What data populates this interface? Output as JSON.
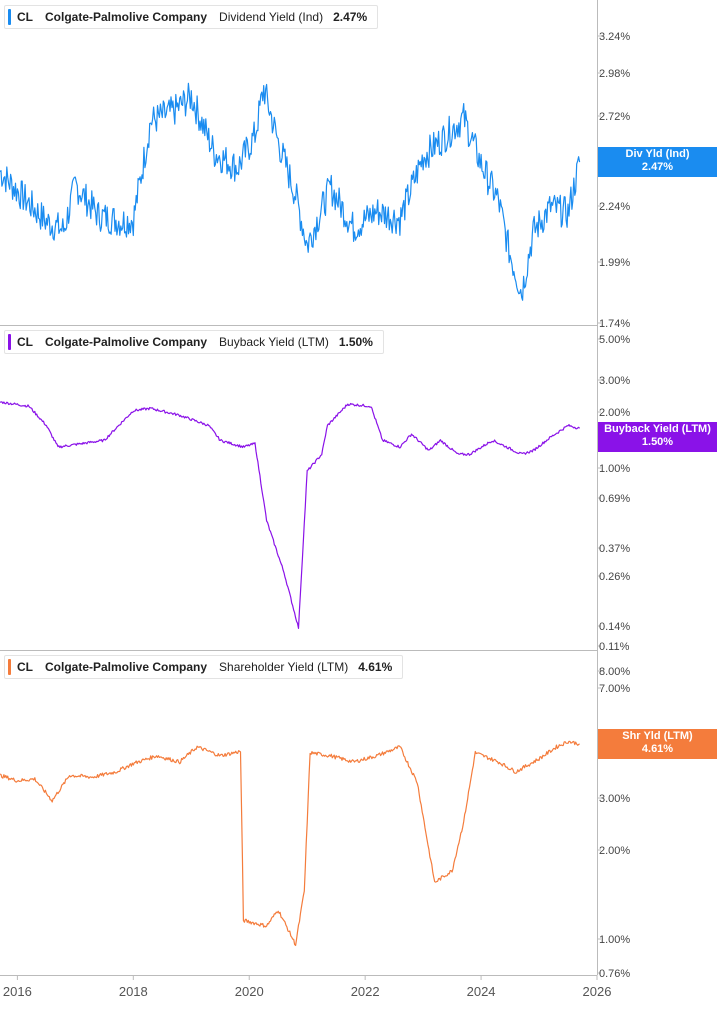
{
  "chart_data": [
    {
      "type": "line",
      "ticker": "CL",
      "company": "Colgate-Palmolive Company",
      "metric": "Dividend Yield (Ind)",
      "current_value": "2.47%",
      "tag_label": "Div Yld (Ind)",
      "tag_value": "2.47%",
      "color": "#1a8cf0",
      "scale": "log",
      "yticks": [
        "3.24%",
        "2.98%",
        "2.72%",
        "2.24%",
        "1.99%",
        "1.74%"
      ],
      "ytick_values": [
        3.24,
        2.98,
        2.72,
        2.24,
        1.99,
        1.74
      ],
      "ylim": [
        1.74,
        3.5
      ],
      "x": [
        2015.7,
        2016.0,
        2016.5,
        2016.8,
        2017.0,
        2017.4,
        2017.8,
        2018.0,
        2018.3,
        2018.7,
        2019.0,
        2019.4,
        2019.8,
        2020.1,
        2020.25,
        2020.5,
        2020.8,
        2021.0,
        2021.4,
        2021.8,
        2022.2,
        2022.6,
        2023.0,
        2023.4,
        2023.7,
        2024.0,
        2024.3,
        2024.5,
        2024.7,
        2024.9,
        2025.2,
        2025.5,
        2025.7
      ],
      "values": [
        2.42,
        2.32,
        2.17,
        2.13,
        2.35,
        2.2,
        2.17,
        2.18,
        2.7,
        2.76,
        2.85,
        2.52,
        2.44,
        2.62,
        2.9,
        2.58,
        2.3,
        2.06,
        2.34,
        2.14,
        2.22,
        2.18,
        2.5,
        2.62,
        2.72,
        2.46,
        2.27,
        2.02,
        1.86,
        2.12,
        2.24,
        2.21,
        2.47
      ]
    },
    {
      "type": "line",
      "ticker": "CL",
      "company": "Colgate-Palmolive Company",
      "metric": "Buyback Yield (LTM)",
      "current_value": "1.50%",
      "tag_label": "Buyback Yield (LTM)",
      "tag_value": "1.50%",
      "color": "#8a12e8",
      "scale": "log",
      "yticks": [
        "5.00%",
        "3.00%",
        "2.00%",
        "1.00%",
        "0.69%",
        "0.37%",
        "0.26%",
        "0.14%",
        "0.11%"
      ],
      "ytick_values": [
        5.0,
        3.0,
        2.0,
        1.0,
        0.69,
        0.37,
        0.26,
        0.14,
        0.11
      ],
      "ylim": [
        0.11,
        5.0
      ],
      "x": [
        2015.7,
        2016.2,
        2016.5,
        2016.7,
        2017.5,
        2017.7,
        2018.0,
        2018.3,
        2018.8,
        2019.3,
        2019.5,
        2019.9,
        2020.1,
        2020.3,
        2020.6,
        2020.85,
        2021.0,
        2021.25,
        2021.35,
        2021.7,
        2022.1,
        2022.3,
        2022.6,
        2022.8,
        2023.1,
        2023.3,
        2023.6,
        2023.8,
        2024.2,
        2024.7,
        2024.9,
        2025.2,
        2025.5,
        2025.7
      ],
      "values": [
        2.05,
        1.95,
        1.55,
        1.2,
        1.3,
        1.5,
        1.85,
        1.9,
        1.75,
        1.55,
        1.3,
        1.2,
        1.25,
        0.5,
        0.27,
        0.14,
        0.9,
        1.1,
        1.55,
        2.0,
        1.95,
        1.3,
        1.2,
        1.4,
        1.15,
        1.3,
        1.1,
        1.1,
        1.3,
        1.1,
        1.15,
        1.35,
        1.55,
        1.5
      ]
    },
    {
      "type": "line",
      "ticker": "CL",
      "company": "Colgate-Palmolive Company",
      "metric": "Shareholder Yield (LTM)",
      "current_value": "4.61%",
      "tag_label": "Shr Yld (LTM)",
      "tag_value": "4.61%",
      "color": "#f47c3c",
      "scale": "log",
      "yticks": [
        "8.00%",
        "7.00%",
        "3.00%",
        "2.00%",
        "1.00%",
        "0.76%"
      ],
      "ytick_values": [
        8.0,
        7.0,
        3.0,
        2.0,
        1.0,
        0.76
      ],
      "ylim": [
        0.76,
        9.5
      ],
      "x": [
        2015.7,
        2016.0,
        2016.3,
        2016.6,
        2016.9,
        2017.3,
        2017.7,
        2018.0,
        2018.4,
        2018.8,
        2019.1,
        2019.5,
        2019.85,
        2019.9,
        2020.3,
        2020.5,
        2020.8,
        2020.95,
        2021.05,
        2021.4,
        2021.8,
        2022.2,
        2022.6,
        2022.9,
        2023.1,
        2023.2,
        2023.5,
        2023.7,
        2023.9,
        2024.3,
        2024.6,
        2025.0,
        2025.3,
        2025.5,
        2025.7
      ],
      "values": [
        3.6,
        3.45,
        3.5,
        2.95,
        3.6,
        3.55,
        3.7,
        3.95,
        4.2,
        4.0,
        4.5,
        4.2,
        4.35,
        1.15,
        1.1,
        1.25,
        0.95,
        1.45,
        4.3,
        4.2,
        4.0,
        4.2,
        4.5,
        3.4,
        2.0,
        1.55,
        1.7,
        2.5,
        4.3,
        4.0,
        3.7,
        4.1,
        4.5,
        4.7,
        4.61
      ]
    }
  ],
  "xaxis": {
    "labels": [
      "2016",
      "2018",
      "2020",
      "2022",
      "2024",
      "2026"
    ],
    "values": [
      2016,
      2018,
      2020,
      2022,
      2024,
      2026
    ]
  }
}
